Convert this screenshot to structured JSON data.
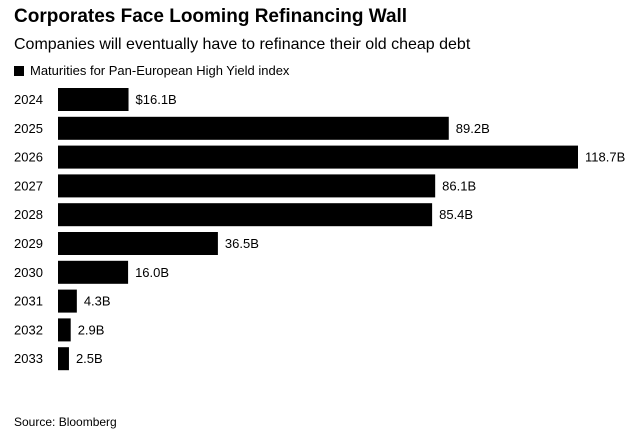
{
  "colors": {
    "bar": "#000000",
    "text": "#000000",
    "background": "#ffffff"
  },
  "chart_data": {
    "type": "bar",
    "orientation": "horizontal",
    "title": "Corporates Face Looming Refinancing Wall",
    "subtitle": "Companies will eventually have to refinance their old cheap debt",
    "legend": [
      "Maturities for Pan-European High Yield index"
    ],
    "legend_position": "top-left",
    "source": "Source: Bloomberg",
    "categories": [
      "2024",
      "2025",
      "2026",
      "2027",
      "2028",
      "2029",
      "2030",
      "2031",
      "2032",
      "2033"
    ],
    "values": [
      16.1,
      89.2,
      118.7,
      86.1,
      85.4,
      36.5,
      16.0,
      4.3,
      2.9,
      2.5
    ],
    "labels": [
      "$16.1B",
      "89.2B",
      "118.7B",
      "86.1B",
      "85.4B",
      "36.5B",
      "16.0B",
      "4.3B",
      "2.9B",
      "2.5B"
    ],
    "unit": "B",
    "xlim": [
      0,
      118.7
    ],
    "grid": false
  }
}
